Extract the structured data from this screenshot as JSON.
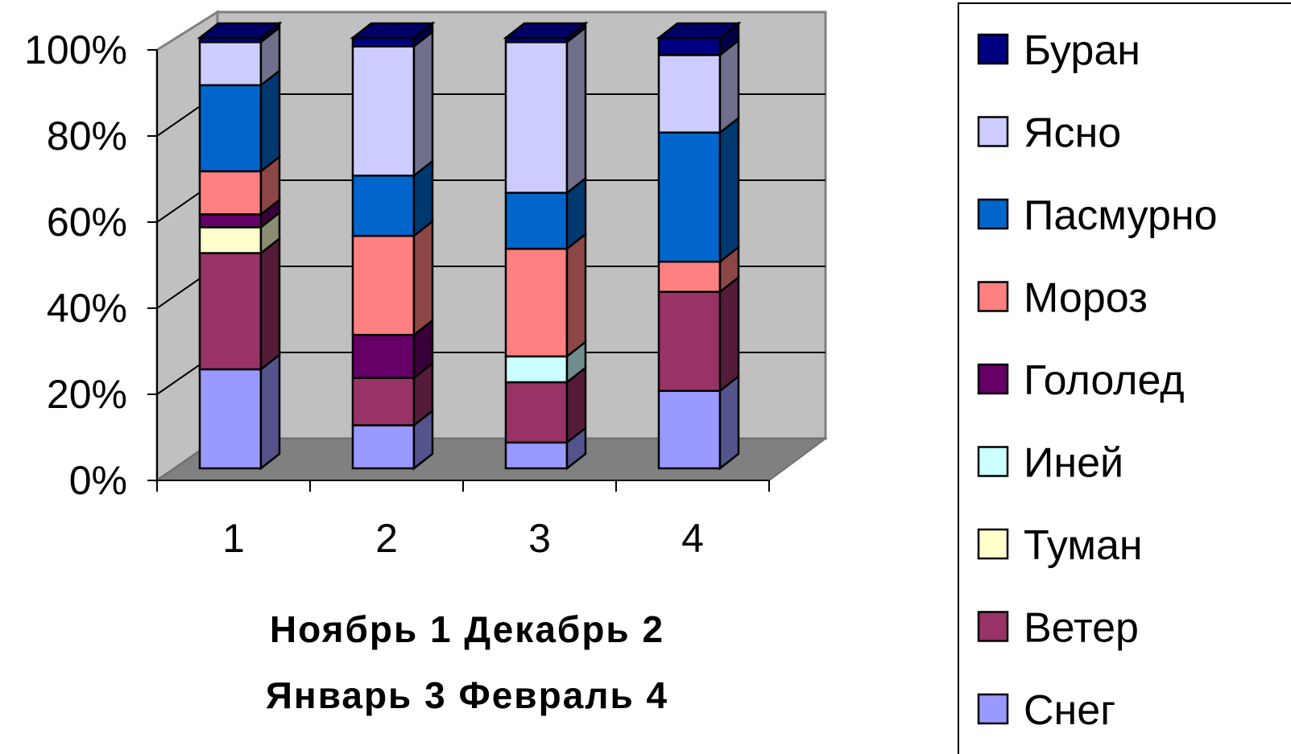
{
  "chart_data": {
    "type": "bar",
    "stacked": true,
    "percent": true,
    "three_d": true,
    "categories": [
      "1",
      "2",
      "3",
      "4"
    ],
    "xlabel": [
      "Ноябрь 1 Декабрь 2",
      "Январь 3 Февраль 4"
    ],
    "ylabel": "",
    "ylim": [
      0,
      100
    ],
    "yticks": [
      "0%",
      "20%",
      "40%",
      "60%",
      "80%",
      "100%"
    ],
    "grid": true,
    "legend": "right",
    "series": [
      {
        "name": "Снег",
        "color": "#9999FF",
        "values": [
          23,
          10,
          6,
          18
        ]
      },
      {
        "name": "Ветер",
        "color": "#993366",
        "values": [
          27,
          11,
          14,
          23
        ]
      },
      {
        "name": "Туман",
        "color": "#FFFFCC",
        "values": [
          6,
          0,
          0,
          0
        ]
      },
      {
        "name": "Иней",
        "color": "#CCFFFF",
        "values": [
          0,
          0,
          6,
          0
        ]
      },
      {
        "name": "Гололед",
        "color": "#660066",
        "values": [
          3,
          10,
          0,
          0
        ]
      },
      {
        "name": "Мороз",
        "color": "#FF8080",
        "values": [
          10,
          23,
          25,
          7
        ]
      },
      {
        "name": "Пасмурно",
        "color": "#0066CC",
        "values": [
          20,
          14,
          13,
          30
        ]
      },
      {
        "name": "Ясно",
        "color": "#CCCCFF",
        "values": [
          10,
          30,
          35,
          18
        ]
      },
      {
        "name": "Буран",
        "color": "#000080",
        "values": [
          1,
          2,
          1,
          4
        ]
      }
    ]
  }
}
